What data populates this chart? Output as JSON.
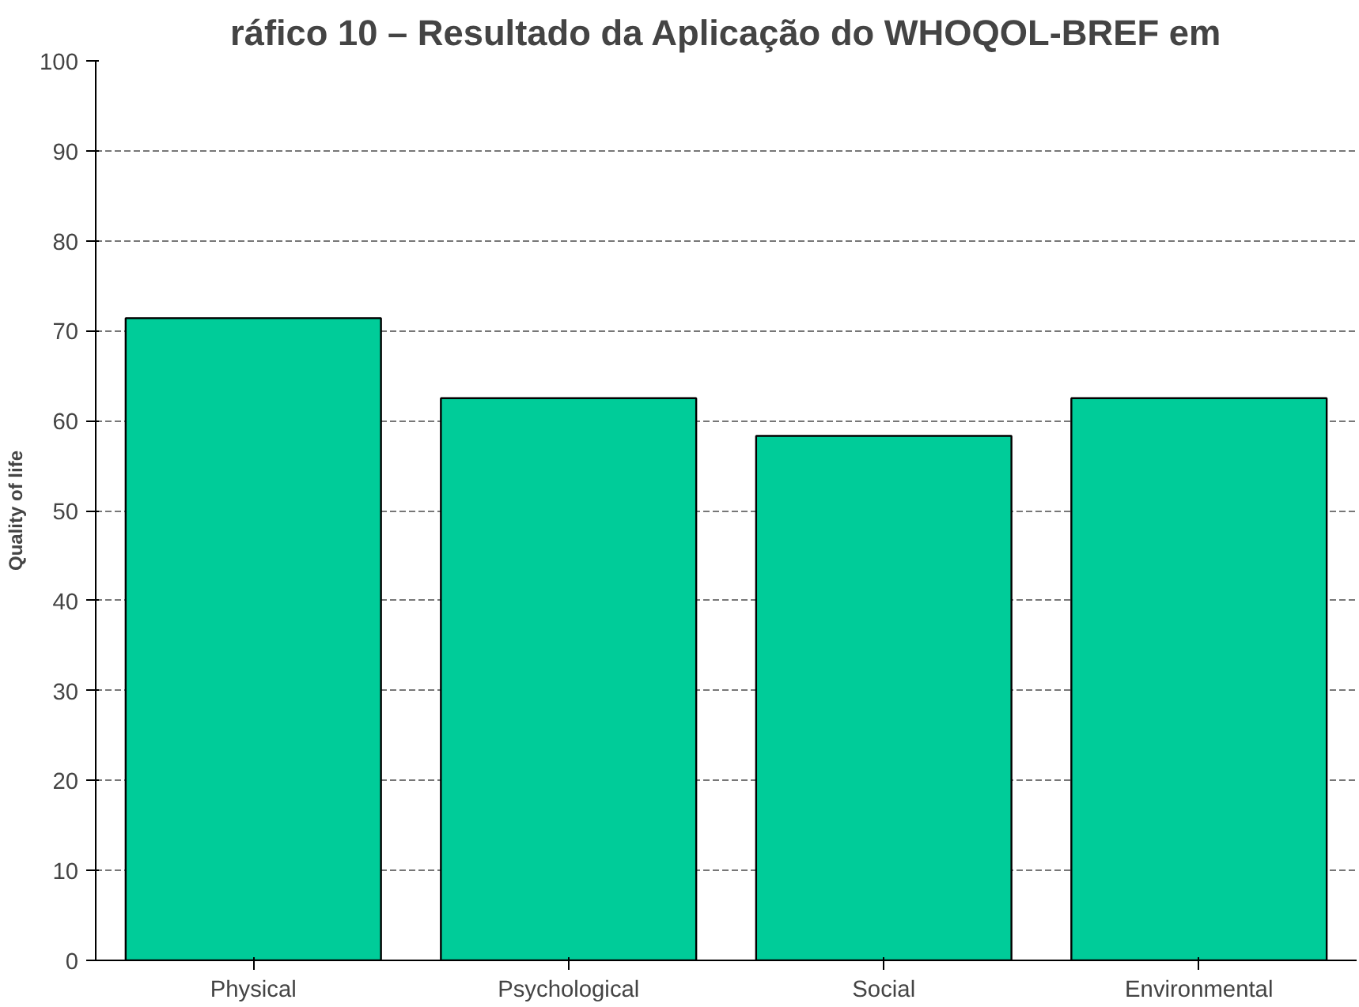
{
  "chart_data": {
    "type": "bar",
    "title": "ráfico 10 – Resultado da Aplicação do WHOQOL-BREF em",
    "ylabel": "Quality of life",
    "categories": [
      "Physical",
      "Psychological",
      "Social",
      "Environmental"
    ],
    "values": [
      71.4,
      62.5,
      58.3,
      62.5
    ],
    "color": "#00cc99",
    "ylim": [
      0,
      100
    ],
    "yticks": [
      0,
      10,
      20,
      30,
      40,
      50,
      60,
      70,
      80,
      90,
      100
    ],
    "grid": "y"
  }
}
